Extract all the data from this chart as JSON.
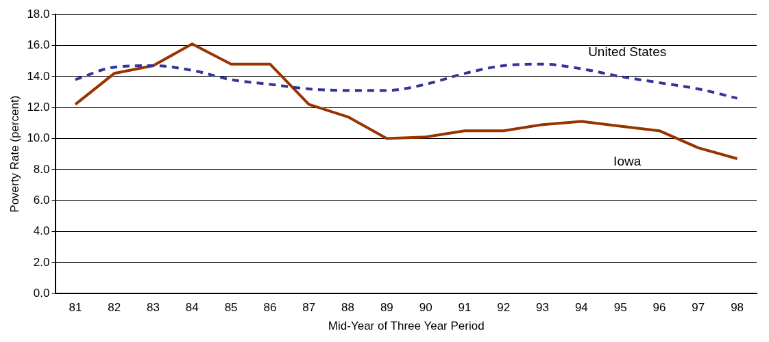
{
  "chart_data": {
    "type": "line",
    "xlabel": "Mid-Year of Three Year Period",
    "ylabel": "Poverty Rate (percent)",
    "categories": [
      "81",
      "82",
      "83",
      "84",
      "85",
      "86",
      "87",
      "88",
      "89",
      "90",
      "91",
      "92",
      "93",
      "94",
      "95",
      "96",
      "97",
      "98"
    ],
    "series": [
      {
        "name": "United States",
        "color": "#333399",
        "line_style": "dashed",
        "values": [
          13.8,
          14.6,
          14.7,
          14.4,
          13.8,
          13.5,
          13.2,
          13.1,
          13.1,
          13.5,
          14.2,
          14.7,
          14.8,
          14.5,
          14.0,
          13.6,
          13.2,
          12.6
        ]
      },
      {
        "name": "Iowa",
        "color": "#993300",
        "line_style": "solid",
        "values": [
          12.2,
          14.2,
          14.7,
          16.1,
          14.8,
          14.8,
          12.2,
          11.4,
          10.0,
          10.1,
          10.5,
          10.5,
          10.9,
          11.1,
          10.8,
          10.5,
          9.4,
          8.7
        ]
      }
    ],
    "ylim": [
      0,
      18
    ],
    "yticks": [
      {
        "value": 0,
        "label": "0.0"
      },
      {
        "value": 2,
        "label": "2.0"
      },
      {
        "value": 4,
        "label": "4.0"
      },
      {
        "value": 6,
        "label": "6.0"
      },
      {
        "value": 8,
        "label": "8.0"
      },
      {
        "value": 10,
        "label": "10.0"
      },
      {
        "value": 12,
        "label": "12.0"
      },
      {
        "value": 14,
        "label": "14.0"
      },
      {
        "value": 16,
        "label": "16.0"
      },
      {
        "value": 18,
        "label": "18.0"
      }
    ],
    "grid": "y",
    "legend": false,
    "marker": "none"
  }
}
